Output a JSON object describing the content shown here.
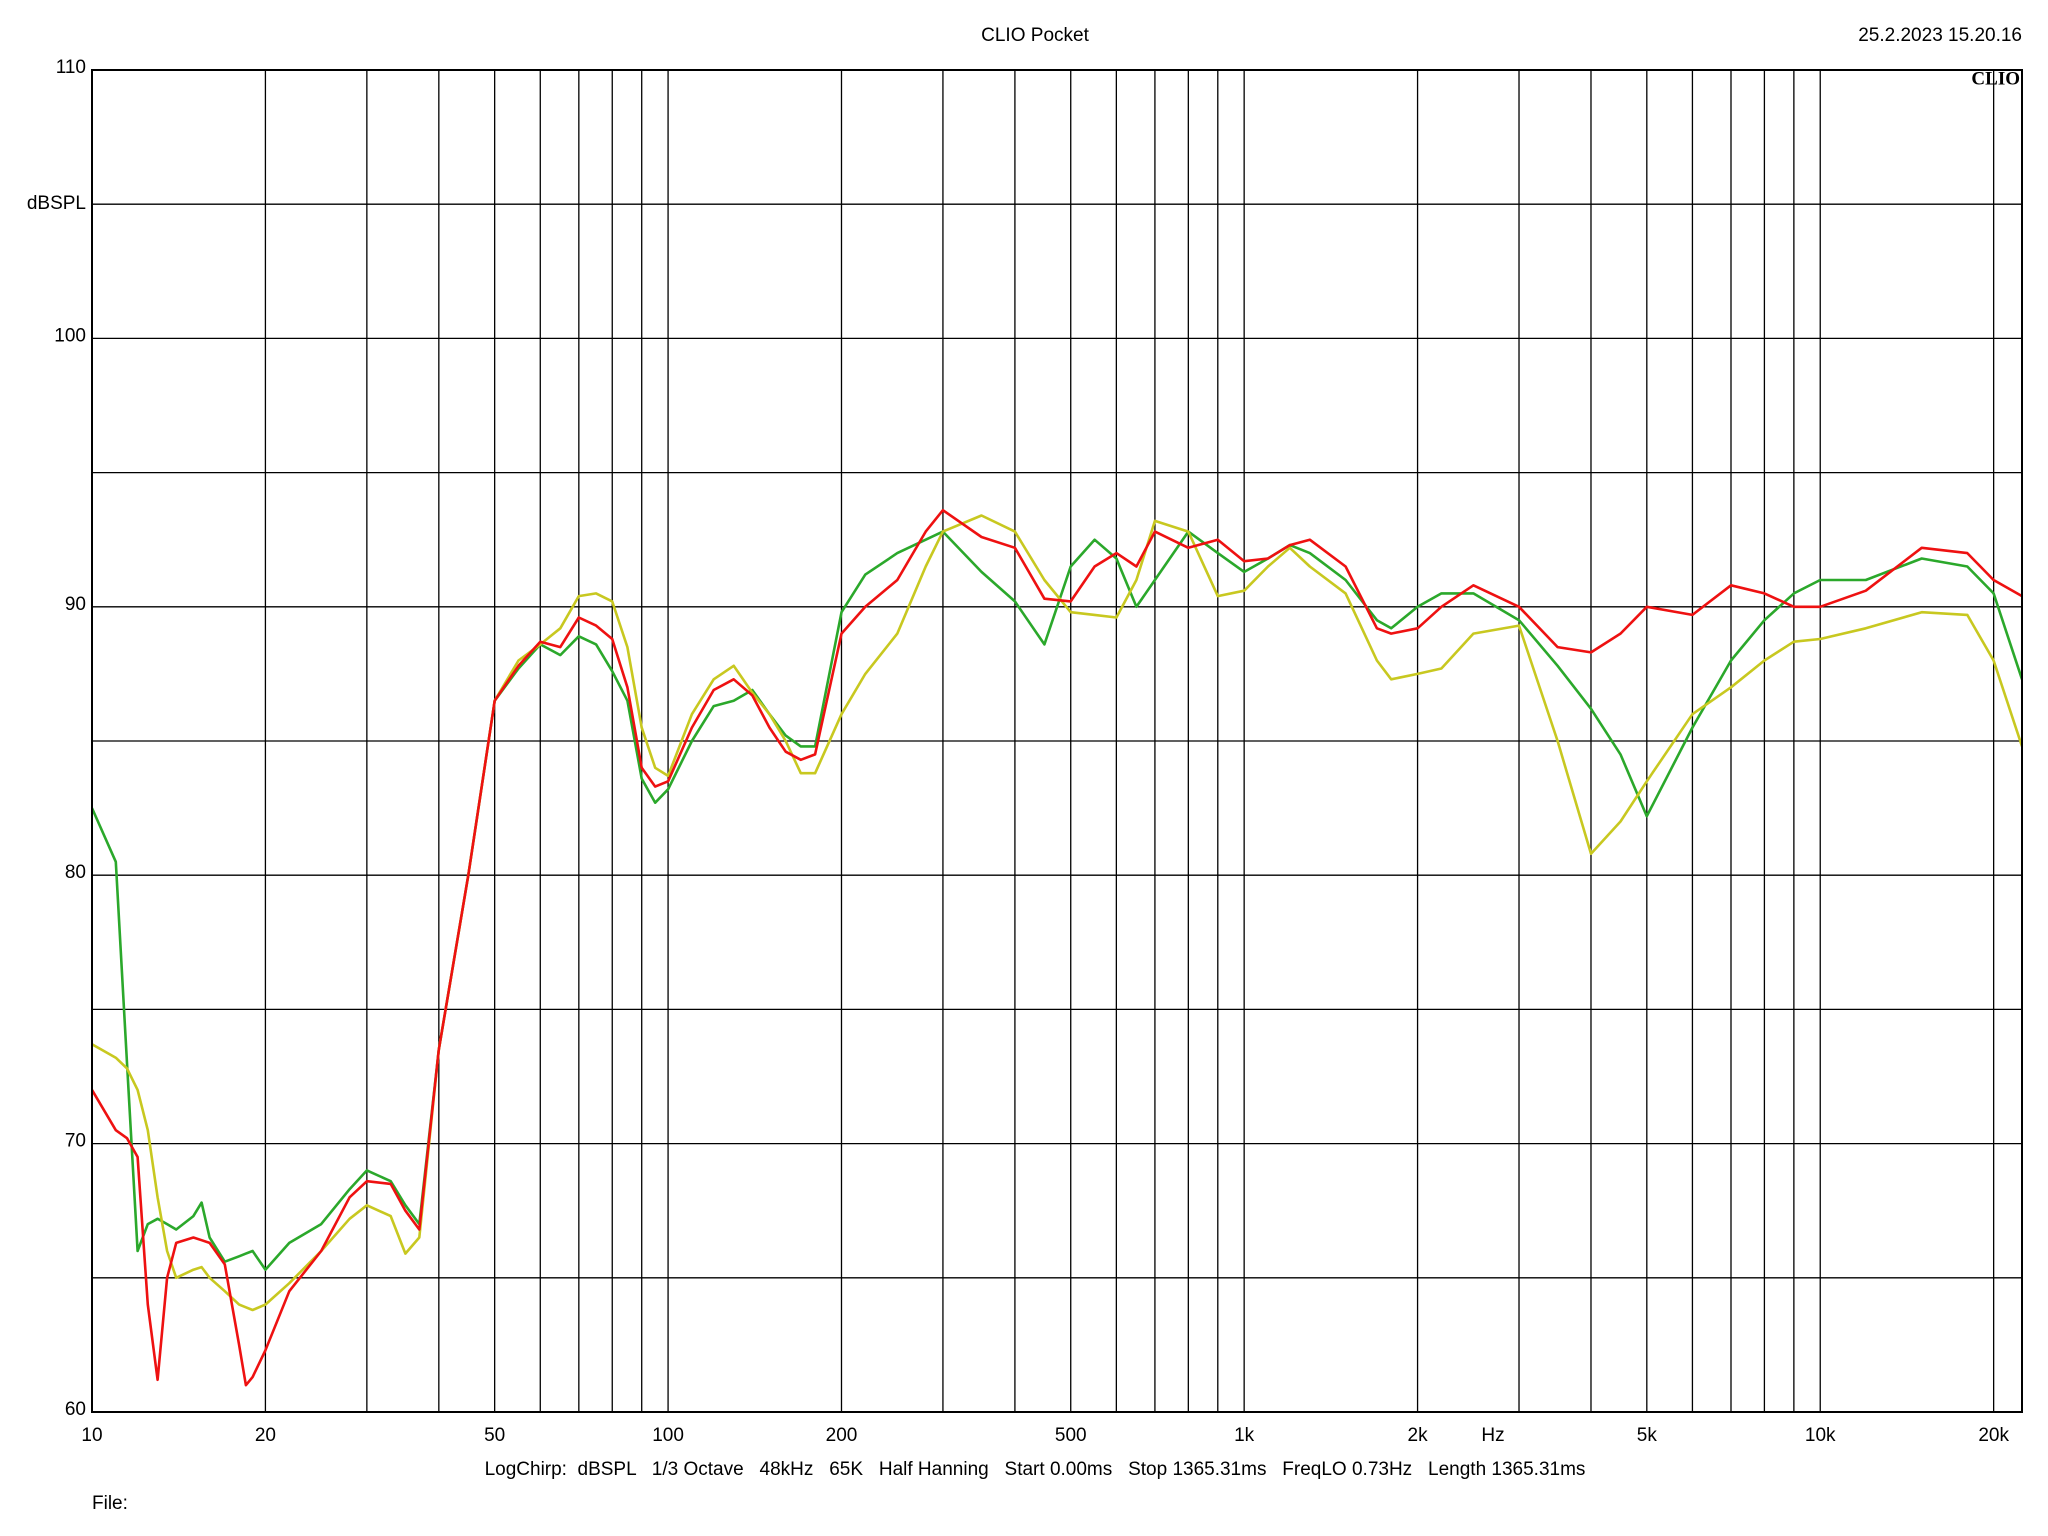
{
  "chart_data": {
    "type": "line",
    "title": "CLIO Pocket",
    "timestamp": "25.2.2023 15.20.16",
    "logo": "CLIO",
    "y_label": "dBSPL",
    "x_label": "Hz",
    "footer": "LogChirp:  dBSPL   1/3 Octave   48kHz   65K   Half Hanning   Start 0.00ms   Stop 1365.31ms   FreqLO 0.73Hz   Length 1365.31ms",
    "file_label": "File:",
    "xscale": "log",
    "grid": true,
    "xlim": [
      10,
      22400
    ],
    "ylim": [
      60,
      110
    ],
    "yticks": [
      60,
      70,
      80,
      90,
      100,
      110
    ],
    "ygrid": [
      65,
      75,
      85,
      95,
      105
    ],
    "xticks": [
      10,
      20,
      50,
      100,
      200,
      500,
      {
        "value": 1000,
        "label": "1k"
      },
      {
        "value": 2000,
        "label": "2k"
      },
      {
        "value": 5000,
        "label": "5k"
      },
      {
        "value": 10000,
        "label": "10k"
      },
      {
        "value": 20000,
        "label": "20k"
      }
    ],
    "xgrid": [
      30,
      40,
      60,
      70,
      80,
      90,
      300,
      400,
      600,
      700,
      800,
      900,
      3000,
      4000,
      6000,
      7000,
      8000,
      9000
    ],
    "x": [
      10,
      11,
      11.5,
      12,
      12.5,
      13,
      13.5,
      14,
      15,
      15.5,
      16,
      17,
      18,
      18.5,
      19,
      20,
      22,
      25,
      28,
      30,
      33,
      35,
      37,
      40,
      45,
      50,
      55,
      60,
      65,
      70,
      75,
      80,
      85,
      90,
      95,
      100,
      110,
      120,
      130,
      140,
      150,
      160,
      170,
      180,
      200,
      220,
      250,
      280,
      300,
      350,
      400,
      450,
      500,
      550,
      600,
      650,
      700,
      800,
      900,
      1000,
      1100,
      1200,
      1300,
      1500,
      1700,
      1800,
      2000,
      2200,
      2500,
      3000,
      3500,
      4000,
      4500,
      5000,
      6000,
      7000,
      8000,
      9000,
      10000,
      12000,
      15000,
      18000,
      20000,
      22400
    ],
    "series": [
      {
        "color": "#2ba82b",
        "values": [
          82.5,
          80.5,
          73,
          66,
          67,
          67.2,
          67,
          66.8,
          67.3,
          67.8,
          66.5,
          65.6,
          65.8,
          65.9,
          66,
          65.3,
          66.3,
          67,
          68.3,
          69,
          68.6,
          67.7,
          67,
          73.5,
          80,
          86.5,
          87.7,
          88.6,
          88.2,
          88.9,
          88.6,
          87.6,
          86.5,
          83.6,
          82.7,
          83.2,
          85,
          86.3,
          86.5,
          86.9,
          86,
          85.2,
          84.8,
          84.8,
          89.8,
          91.2,
          92,
          92.5,
          92.8,
          91.3,
          90.2,
          88.6,
          91.5,
          92.5,
          91.8,
          90,
          91,
          92.8,
          92,
          91.3,
          91.8,
          92.3,
          92,
          91,
          89.5,
          89.2,
          90,
          90.5,
          90.5,
          89.5,
          87.8,
          86.2,
          84.5,
          82.2,
          85.5,
          88,
          89.5,
          90.5,
          91,
          91,
          91.8,
          91.5,
          90.5,
          87.3
        ]
      },
      {
        "color": "#c8c820",
        "values": [
          73.7,
          73.2,
          72.8,
          72,
          70.5,
          68,
          66,
          65,
          65.3,
          65.4,
          65,
          64.5,
          64,
          63.9,
          63.8,
          64,
          64.8,
          66,
          67.2,
          67.7,
          67.3,
          65.9,
          66.5,
          73.5,
          80,
          86.5,
          88,
          88.6,
          89.2,
          90.4,
          90.5,
          90.2,
          88.5,
          85.5,
          84,
          83.7,
          86,
          87.3,
          87.8,
          86.8,
          86,
          85,
          83.8,
          83.8,
          86,
          87.5,
          89,
          91.5,
          92.8,
          93.4,
          92.8,
          91,
          89.8,
          89.7,
          89.6,
          91,
          93.2,
          92.8,
          90.4,
          90.6,
          91.5,
          92.2,
          91.5,
          90.5,
          88,
          87.3,
          87.5,
          87.7,
          89,
          89.3,
          85,
          80.8,
          82,
          83.5,
          86,
          87,
          88,
          88.7,
          88.8,
          89.2,
          89.8,
          89.7,
          88,
          84.8
        ]
      },
      {
        "color": "#ee1111",
        "values": [
          72,
          70.5,
          70.2,
          69.5,
          64,
          61.2,
          65,
          66.3,
          66.5,
          66.4,
          66.3,
          65.5,
          62.5,
          61,
          61.3,
          62.3,
          64.5,
          66,
          68,
          68.6,
          68.5,
          67.5,
          66.8,
          73.5,
          80,
          86.5,
          87.8,
          88.7,
          88.5,
          89.6,
          89.3,
          88.8,
          87,
          84,
          83.3,
          83.5,
          85.5,
          86.9,
          87.3,
          86.7,
          85.5,
          84.6,
          84.3,
          84.5,
          89,
          90,
          91,
          92.8,
          93.6,
          92.6,
          92.2,
          90.3,
          90.2,
          91.5,
          92,
          91.5,
          92.8,
          92.2,
          92.5,
          91.7,
          91.8,
          92.3,
          92.5,
          91.5,
          89.2,
          89,
          89.2,
          90,
          90.8,
          90,
          88.5,
          88.3,
          89,
          90,
          89.7,
          90.8,
          90.5,
          90,
          90,
          90.6,
          92.2,
          92,
          91,
          90.4
        ]
      }
    ]
  }
}
